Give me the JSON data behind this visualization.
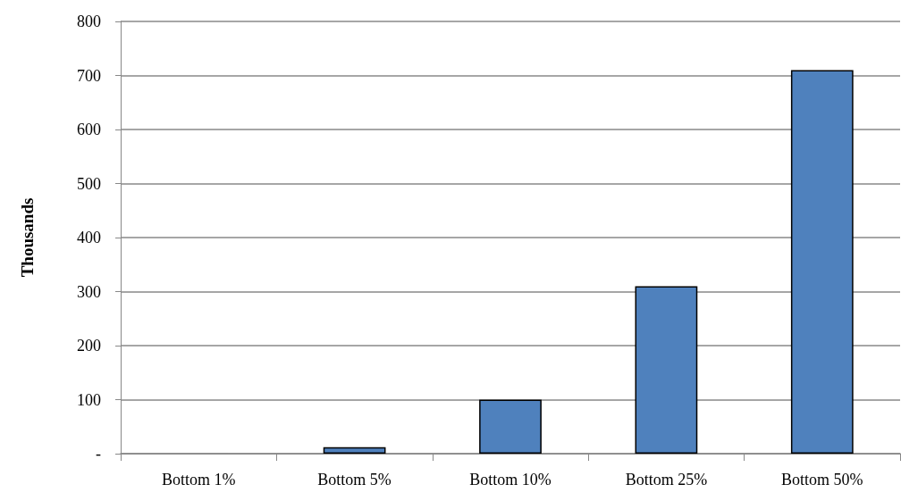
{
  "chart_data": {
    "type": "bar",
    "ylabel": "Thousands",
    "categories": [
      "Bottom 1%",
      "Bottom 5%",
      "Bottom 10%",
      "Bottom 25%",
      "Bottom 50%"
    ],
    "values": [
      0,
      12,
      100,
      310,
      710
    ],
    "color": "#4f81bd",
    "ylim": [
      0,
      800
    ],
    "yticks": [
      {
        "value": 0,
        "label": "-"
      },
      100,
      200,
      300,
      400,
      500,
      600,
      700,
      800
    ],
    "grid": "y"
  }
}
